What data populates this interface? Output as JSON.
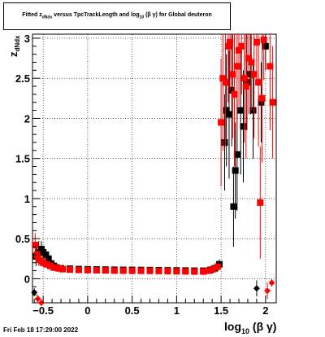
{
  "chart_data": {
    "type": "scatter",
    "title_parts": [
      "Fitted  z",
      "dNdx",
      "  versus TpcTrackLength and log",
      "10",
      " (β γ) for Global deuteron"
    ],
    "ylabel_main": "z",
    "ylabel_sub": "dNdx",
    "xlabel_main": "log",
    "xlabel_sub": "10",
    "xlabel_tail": " (β γ)",
    "xlim": [
      -0.62,
      2.12
    ],
    "ylim": [
      -0.3,
      3.05
    ],
    "xticks": [
      -0.5,
      0,
      0.5,
      1,
      1.5,
      2
    ],
    "xtick_labels": [
      "−0.5",
      "0",
      "0.5",
      "1",
      "1.5",
      "2"
    ],
    "yticks": [
      0,
      0.5,
      1,
      1.5,
      2,
      2.5,
      3
    ],
    "ytick_labels": [
      "0",
      "0.5",
      "1",
      "1.5",
      "2",
      "2.5",
      "3"
    ],
    "grid": true,
    "series": [
      {
        "color": "#000000",
        "points": [
          [
            -0.58,
            0.28,
            0.12
          ],
          [
            -0.55,
            0.33,
            0.14
          ],
          [
            -0.52,
            0.37,
            0.1
          ],
          [
            -0.5,
            0.33,
            0.08
          ],
          [
            -0.47,
            0.3,
            0.06
          ],
          [
            -0.44,
            0.25,
            0.04
          ],
          [
            -0.41,
            0.19,
            0.03
          ],
          [
            -0.38,
            0.16,
            0.02
          ],
          [
            -0.35,
            0.14,
            0.02
          ],
          [
            -0.3,
            0.13,
            0.01
          ],
          [
            -0.2,
            0.125,
            0.01
          ],
          [
            -0.1,
            0.12,
            0.01
          ],
          [
            0,
            0.118,
            0.01
          ],
          [
            0.1,
            0.116,
            0.01
          ],
          [
            0.2,
            0.114,
            0.01
          ],
          [
            0.3,
            0.112,
            0.01
          ],
          [
            0.4,
            0.111,
            0.01
          ],
          [
            0.5,
            0.11,
            0.01
          ],
          [
            0.6,
            0.109,
            0.01
          ],
          [
            0.7,
            0.108,
            0.01
          ],
          [
            0.8,
            0.106,
            0.01
          ],
          [
            0.9,
            0.104,
            0.01
          ],
          [
            1.0,
            0.103,
            0.01
          ],
          [
            1.1,
            0.102,
            0.01
          ],
          [
            1.2,
            0.1,
            0.01
          ],
          [
            1.3,
            0.1,
            0.01
          ],
          [
            1.38,
            0.11,
            0.02
          ],
          [
            1.43,
            0.13,
            0.03
          ],
          [
            1.48,
            0.18,
            0.06
          ],
          [
            1.54,
            1.7,
            0.6
          ],
          [
            1.56,
            2.1,
            0.7
          ],
          [
            1.59,
            2.05,
            0.8
          ],
          [
            1.62,
            2.35,
            0.7
          ],
          [
            1.64,
            0.9,
            0.5
          ],
          [
            1.66,
            1.35,
            0.6
          ],
          [
            1.68,
            1.55,
            0.7
          ],
          [
            1.72,
            2.1,
            0.8
          ],
          [
            1.75,
            1.9,
            0.7
          ],
          [
            1.79,
            2.45,
            0.6
          ],
          [
            1.83,
            2.55,
            0.5
          ],
          [
            1.86,
            2.1,
            0.6
          ],
          [
            1.9,
            -0.12,
            0.1
          ],
          [
            1.95,
            2.2,
            0.5
          ],
          [
            2.0,
            2.9,
            0.3
          ],
          [
            -0.6,
            -0.17,
            0.05
          ]
        ]
      },
      {
        "color": "#ff0000",
        "points": [
          [
            -0.59,
            0.42,
            0.15
          ],
          [
            -0.57,
            0.3,
            0.1
          ],
          [
            -0.55,
            0.24,
            0.08
          ],
          [
            -0.52,
            0.22,
            0.06
          ],
          [
            -0.5,
            0.2,
            0.05
          ],
          [
            -0.46,
            0.18,
            0.04
          ],
          [
            -0.42,
            0.16,
            0.03
          ],
          [
            -0.38,
            0.14,
            0.02
          ],
          [
            -0.33,
            0.13,
            0.02
          ],
          [
            -0.28,
            0.12,
            0.01
          ],
          [
            -0.2,
            0.115,
            0.01
          ],
          [
            -0.1,
            0.11,
            0.01
          ],
          [
            0,
            0.108,
            0.01
          ],
          [
            0.1,
            0.106,
            0.01
          ],
          [
            0.2,
            0.104,
            0.01
          ],
          [
            0.3,
            0.102,
            0.01
          ],
          [
            0.4,
            0.1,
            0.01
          ],
          [
            0.5,
            0.1,
            0.01
          ],
          [
            0.6,
            0.099,
            0.01
          ],
          [
            0.7,
            0.098,
            0.01
          ],
          [
            0.8,
            0.097,
            0.01
          ],
          [
            0.9,
            0.095,
            0.01
          ],
          [
            1.0,
            0.093,
            0.01
          ],
          [
            1.1,
            0.092,
            0.01
          ],
          [
            1.2,
            0.09,
            0.01
          ],
          [
            1.3,
            0.09,
            0.01
          ],
          [
            1.36,
            0.1,
            0.02
          ],
          [
            1.41,
            0.12,
            0.03
          ],
          [
            1.46,
            0.15,
            0.04
          ],
          [
            1.5,
            1.95,
            0.8
          ],
          [
            1.52,
            2.5,
            0.9
          ],
          [
            1.55,
            2.45,
            0.8
          ],
          [
            1.58,
            2.9,
            0.7
          ],
          [
            1.6,
            2.95,
            0.6
          ],
          [
            1.63,
            2.55,
            0.8
          ],
          [
            1.65,
            2.3,
            0.9
          ],
          [
            1.68,
            2.65,
            0.8
          ],
          [
            1.7,
            2.85,
            0.7
          ],
          [
            1.73,
            2.9,
            0.6
          ],
          [
            1.76,
            2.5,
            0.8
          ],
          [
            1.78,
            2.4,
            0.9
          ],
          [
            1.81,
            2.75,
            0.7
          ],
          [
            1.84,
            2.7,
            0.6
          ],
          [
            1.87,
            2.55,
            0.8
          ],
          [
            1.9,
            2.95,
            0.5
          ],
          [
            1.92,
            2.45,
            0.8
          ],
          [
            1.94,
            0.95,
            0.7
          ],
          [
            1.96,
            2.25,
            0.8
          ],
          [
            1.98,
            2.98,
            0.5
          ],
          [
            2.02,
            -0.15,
            0.1
          ],
          [
            2.05,
            2.65,
            0.8
          ],
          [
            2.08,
            2.2,
            0.7
          ],
          [
            2.07,
            -0.05,
            0.05
          ],
          [
            -0.52,
            -0.3,
            0.05
          ],
          [
            -0.56,
            -0.25,
            0.05
          ]
        ]
      }
    ]
  },
  "timestamp": "Fri Feb 18 17:29:00 2022"
}
